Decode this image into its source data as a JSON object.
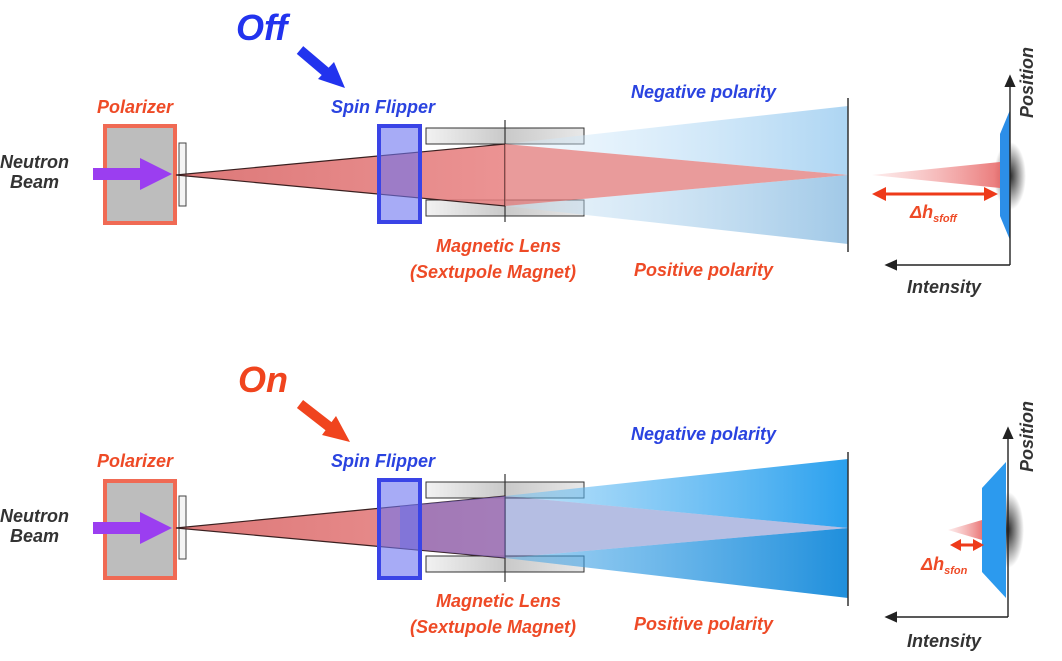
{
  "colors": {
    "off": "#2233ee",
    "on": "#f0441e",
    "blue_label": "#2a43e0",
    "red_label": "#ee4a26",
    "dark_label": "#333333",
    "beam_red": "#e07272",
    "beam_blue_light": "#b9dcf5",
    "beam_blue_strong": "#3ea8ee",
    "arrow_purple": "#9b3ef0"
  },
  "panel_off": {
    "state": "Off",
    "polarizer": "Polarizer",
    "neutron_beam": [
      "Neutron",
      "Beam"
    ],
    "spin_flipper": "Spin Flipper",
    "magnetic_lens": [
      "Magnetic Lens",
      "(Sextupole Magnet)"
    ],
    "negative_polarity": "Negative polarity",
    "positive_polarity": "Positive polarity",
    "position_axis": "Position",
    "intensity_axis": "Intensity",
    "delta_main": "Δh",
    "delta_sub": "sfoff"
  },
  "panel_on": {
    "state": "On",
    "polarizer": "Polarizer",
    "neutron_beam": [
      "Neutron",
      "Beam"
    ],
    "spin_flipper": "Spin Flipper",
    "magnetic_lens": [
      "Magnetic Lens",
      "(Sextupole Magnet)"
    ],
    "negative_polarity": "Negative polarity",
    "positive_polarity": "Positive polarity",
    "position_axis": "Position",
    "intensity_axis": "Intensity",
    "delta_main": "Δh",
    "delta_sub": "sfon"
  }
}
